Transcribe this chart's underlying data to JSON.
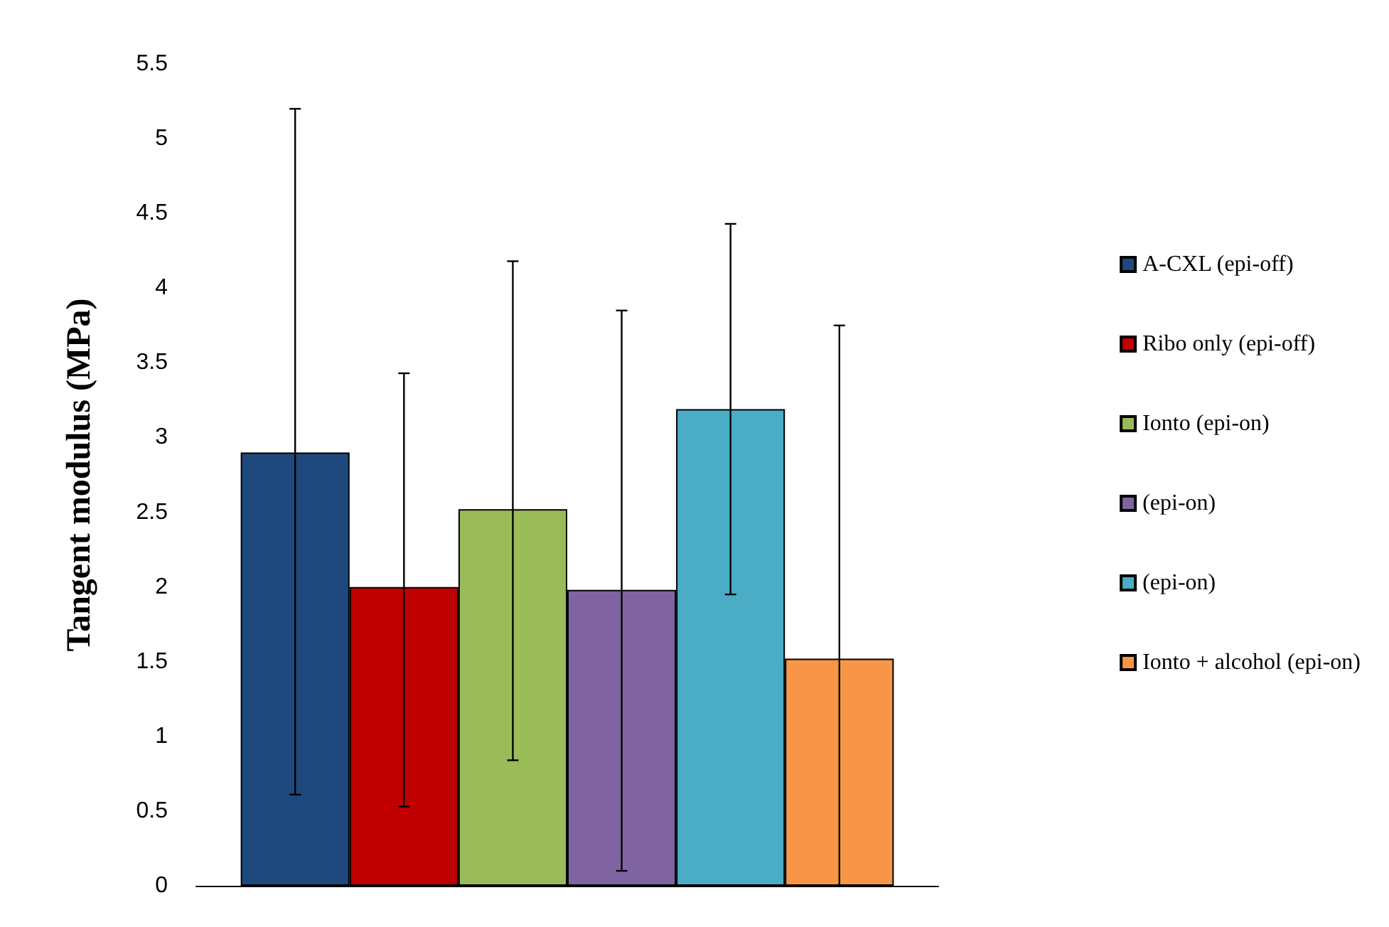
{
  "chart_data": {
    "type": "bar",
    "ylabel": "Tangent modulus (MPa)",
    "categories": [
      null
    ],
    "series": [
      {
        "name": "A-CXL (epi-off)",
        "color": "#1f497d",
        "values": [
          2.9
        ],
        "errors": [
          [
            0.61,
            5.2
          ]
        ]
      },
      {
        "name": "Ribo only (epi-off)",
        "color": "#c00000",
        "values": [
          2.0
        ],
        "errors": [
          [
            0.53,
            3.43
          ]
        ]
      },
      {
        "name": "Ionto (epi-on)",
        "color": "#9bbb59",
        "values": [
          2.52
        ],
        "errors": [
          [
            0.84,
            4.18
          ]
        ]
      },
      {
        "name": "(epi-on)",
        "color": "#8064a2",
        "values": [
          1.98
        ],
        "errors": [
          [
            0.1,
            3.85
          ]
        ]
      },
      {
        "name": "(epi-on)",
        "color": "#4bacc6",
        "values": [
          3.19
        ],
        "errors": [
          [
            1.95,
            4.43
          ]
        ]
      },
      {
        "name": "Ionto + alcohol (epi-on)",
        "color": "#f79646",
        "values": [
          1.52
        ],
        "errors": [
          [
            0,
            3.75
          ]
        ]
      }
    ],
    "ylim": [
      0,
      5.5
    ],
    "yticks": [
      0,
      0.5,
      1,
      1.5,
      2,
      2.5,
      3,
      3.5,
      4,
      4.5,
      5,
      5.5
    ],
    "grid": false,
    "legend": "right"
  }
}
